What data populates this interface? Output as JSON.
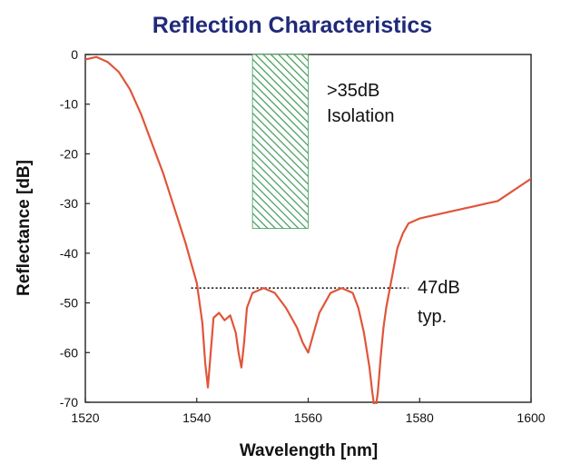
{
  "chart_data": {
    "type": "line",
    "title": "Reflection Characteristics",
    "xlabel": "Wavelength [nm]",
    "ylabel": "Reflectance [dB]",
    "xlim": [
      1520,
      1600
    ],
    "ylim": [
      -70,
      0
    ],
    "xticks": [
      1520,
      1540,
      1560,
      1580,
      1600
    ],
    "yticks": [
      0,
      -10,
      -20,
      -30,
      -40,
      -50,
      -60,
      -70
    ],
    "grid": false,
    "series": [
      {
        "color": "#e0553a",
        "x": [
          1520,
          1522,
          1524,
          1526,
          1528,
          1530,
          1532,
          1534,
          1536,
          1538,
          1539,
          1540,
          1541,
          1541.5,
          1542,
          1542.5,
          1543,
          1544,
          1545,
          1546,
          1547,
          1547.5,
          1548,
          1548.5,
          1549,
          1550,
          1552,
          1554,
          1556,
          1558,
          1559,
          1560,
          1561,
          1562,
          1564,
          1566,
          1568,
          1569,
          1570,
          1571,
          1571.5,
          1572,
          1572.5,
          1573,
          1573.5,
          1574,
          1575,
          1576,
          1577,
          1578,
          1580,
          1582,
          1584,
          1586,
          1588,
          1590,
          1592,
          1594,
          1596,
          1598,
          1600
        ],
        "y": [
          -1,
          -0.5,
          -1.5,
          -3.5,
          -7,
          -12,
          -18,
          -24,
          -31,
          -38,
          -42,
          -46,
          -54,
          -62,
          -67,
          -60,
          -53,
          -52,
          -53.5,
          -52.5,
          -56,
          -60,
          -63,
          -58,
          -51,
          -48,
          -47,
          -48,
          -51,
          -55,
          -58,
          -60,
          -56,
          -52,
          -48,
          -47,
          -48,
          -51,
          -56,
          -63,
          -68,
          -72,
          -68,
          -61,
          -55,
          -51,
          -45,
          -39,
          -36,
          -34,
          -33,
          -32.5,
          -32,
          -31.5,
          -31,
          -30.5,
          -30,
          -29.5,
          -28,
          -26.5,
          -25
        ]
      }
    ],
    "isolation_band": {
      "x_range": [
        1550,
        1560
      ],
      "y_range": [
        -35,
        0
      ],
      "color": "#3f9a55",
      "pattern": "diagonal hatch"
    },
    "reference_line": {
      "y": -47,
      "x_range": [
        1539,
        1578
      ],
      "style": "dotted"
    },
    "annotations": [
      {
        "lines": [
          ">35dB",
          "Isolation"
        ]
      },
      {
        "lines": [
          "47dB",
          "typ."
        ]
      }
    ]
  }
}
